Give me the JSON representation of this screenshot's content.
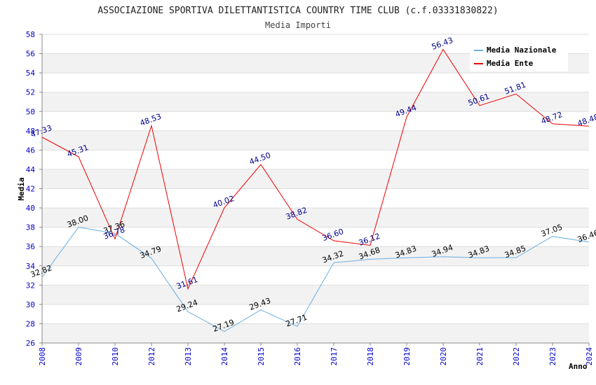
{
  "chart_data": {
    "type": "line",
    "title": "ASSOCIAZIONE SPORTIVA DILETTANTISTICA COUNTRY TIME CLUB (c.f.03331830822)",
    "subtitle": "Media Importi",
    "xlabel": "Anno",
    "ylabel": "Media",
    "categories": [
      "2008",
      "2009",
      "2010",
      "2012",
      "2013",
      "2014",
      "2015",
      "2016",
      "2017",
      "2018",
      "2019",
      "2020",
      "2021",
      "2022",
      "2023",
      "2024"
    ],
    "ylim": [
      26,
      58
    ],
    "ytick_step": 2,
    "series": [
      {
        "name": "Media Nazionale",
        "color": "#6aaee0",
        "label_color": "#000000",
        "values": [
          32.82,
          38.0,
          37.36,
          34.79,
          29.24,
          27.19,
          29.43,
          27.71,
          34.32,
          34.68,
          34.83,
          34.94,
          34.83,
          34.85,
          37.05,
          36.46
        ],
        "labels": [
          "32.82",
          "38.00",
          "37.36",
          "34.79",
          "29.24",
          "27.19",
          "29.43",
          "27.71",
          "34.32",
          "34.68",
          "34.83",
          "34.94",
          "34.83",
          "34.85",
          "37.05",
          "36.46"
        ]
      },
      {
        "name": "Media Ente",
        "color": "#ee0000",
        "label_color": "#00008b",
        "values": [
          47.33,
          45.31,
          36.78,
          48.53,
          31.61,
          40.02,
          44.5,
          38.82,
          36.6,
          36.12,
          49.44,
          56.43,
          50.61,
          51.81,
          48.72,
          48.48
        ],
        "labels": [
          "47.33",
          "45.31",
          "36.78",
          "48.53",
          "31.61",
          "40.02",
          "44.50",
          "38.82",
          "36.60",
          "36.12",
          "49.44",
          "56.43",
          "50.61",
          "51.81",
          "48.72",
          "48.48"
        ]
      }
    ],
    "grid": true,
    "band_colors": [
      "#f2f2f2",
      "#ffffff"
    ],
    "tick_color": "#0000cc",
    "legend_position": "top-right"
  }
}
